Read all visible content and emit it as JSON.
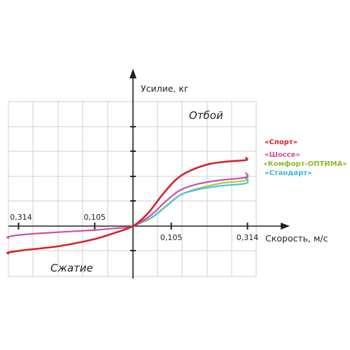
{
  "chart_data": {
    "type": "line",
    "xlabel": "Скорость, м/с",
    "ylabel": "Усилие, кг",
    "region_labels": {
      "rebound": "Отбой",
      "compression": "Сжатие"
    },
    "x_tick_labels": {
      "positive": [
        "0,105",
        "0,314"
      ],
      "negative": [
        "0,105",
        "0,314"
      ]
    },
    "x_ticks": [
      0.105,
      0.314
    ],
    "grid": true,
    "legend_position": "right",
    "series": [
      {
        "name": "«Спорт»",
        "color": "#d2232a",
        "points": [
          [
            -0.46,
            -1.1
          ],
          [
            -0.4,
            -1.06
          ],
          [
            -0.3,
            -0.97
          ],
          [
            -0.2,
            -0.8
          ],
          [
            -0.105,
            -0.52
          ],
          [
            -0.05,
            -0.27
          ],
          [
            0,
            0
          ],
          [
            0.04,
            0.5
          ],
          [
            0.08,
            1.25
          ],
          [
            0.12,
            1.9
          ],
          [
            0.16,
            2.25
          ],
          [
            0.21,
            2.5
          ],
          [
            0.26,
            2.6
          ],
          [
            0.314,
            2.66
          ],
          [
            0.46,
            2.75
          ]
        ],
        "legend_color": "#d2232a"
      },
      {
        "name": "«Шоссе»",
        "color": "#cc4fa6",
        "points": [
          [
            -0.46,
            -0.48
          ],
          [
            -0.4,
            -0.43
          ],
          [
            -0.3,
            -0.34
          ],
          [
            -0.2,
            -0.24
          ],
          [
            -0.105,
            -0.16
          ],
          [
            -0.05,
            -0.09
          ],
          [
            0,
            0
          ],
          [
            0.05,
            0.45
          ],
          [
            0.09,
            1.0
          ],
          [
            0.13,
            1.45
          ],
          [
            0.18,
            1.7
          ],
          [
            0.24,
            1.85
          ],
          [
            0.314,
            1.96
          ],
          [
            0.46,
            2.14
          ]
        ],
        "legend_color": "#cc4fa6"
      },
      {
        "name": "«Комфорт-ОПТИМА»",
        "color": "#a8cf38",
        "points": [
          [
            0,
            0
          ],
          [
            0.05,
            0.32
          ],
          [
            0.09,
            0.78
          ],
          [
            0.13,
            1.25
          ],
          [
            0.18,
            1.52
          ],
          [
            0.24,
            1.72
          ],
          [
            0.314,
            1.84
          ],
          [
            0.46,
            2.02
          ]
        ],
        "legend_color": "#8db82c"
      },
      {
        "name": "«Стандарт»",
        "color": "#4fc1e0",
        "points": [
          [
            0,
            0
          ],
          [
            0.05,
            0.34
          ],
          [
            0.09,
            0.8
          ],
          [
            0.13,
            1.25
          ],
          [
            0.18,
            1.48
          ],
          [
            0.24,
            1.62
          ],
          [
            0.314,
            1.72
          ],
          [
            0.46,
            1.92
          ]
        ],
        "legend_color": "#39b6d8"
      }
    ]
  }
}
